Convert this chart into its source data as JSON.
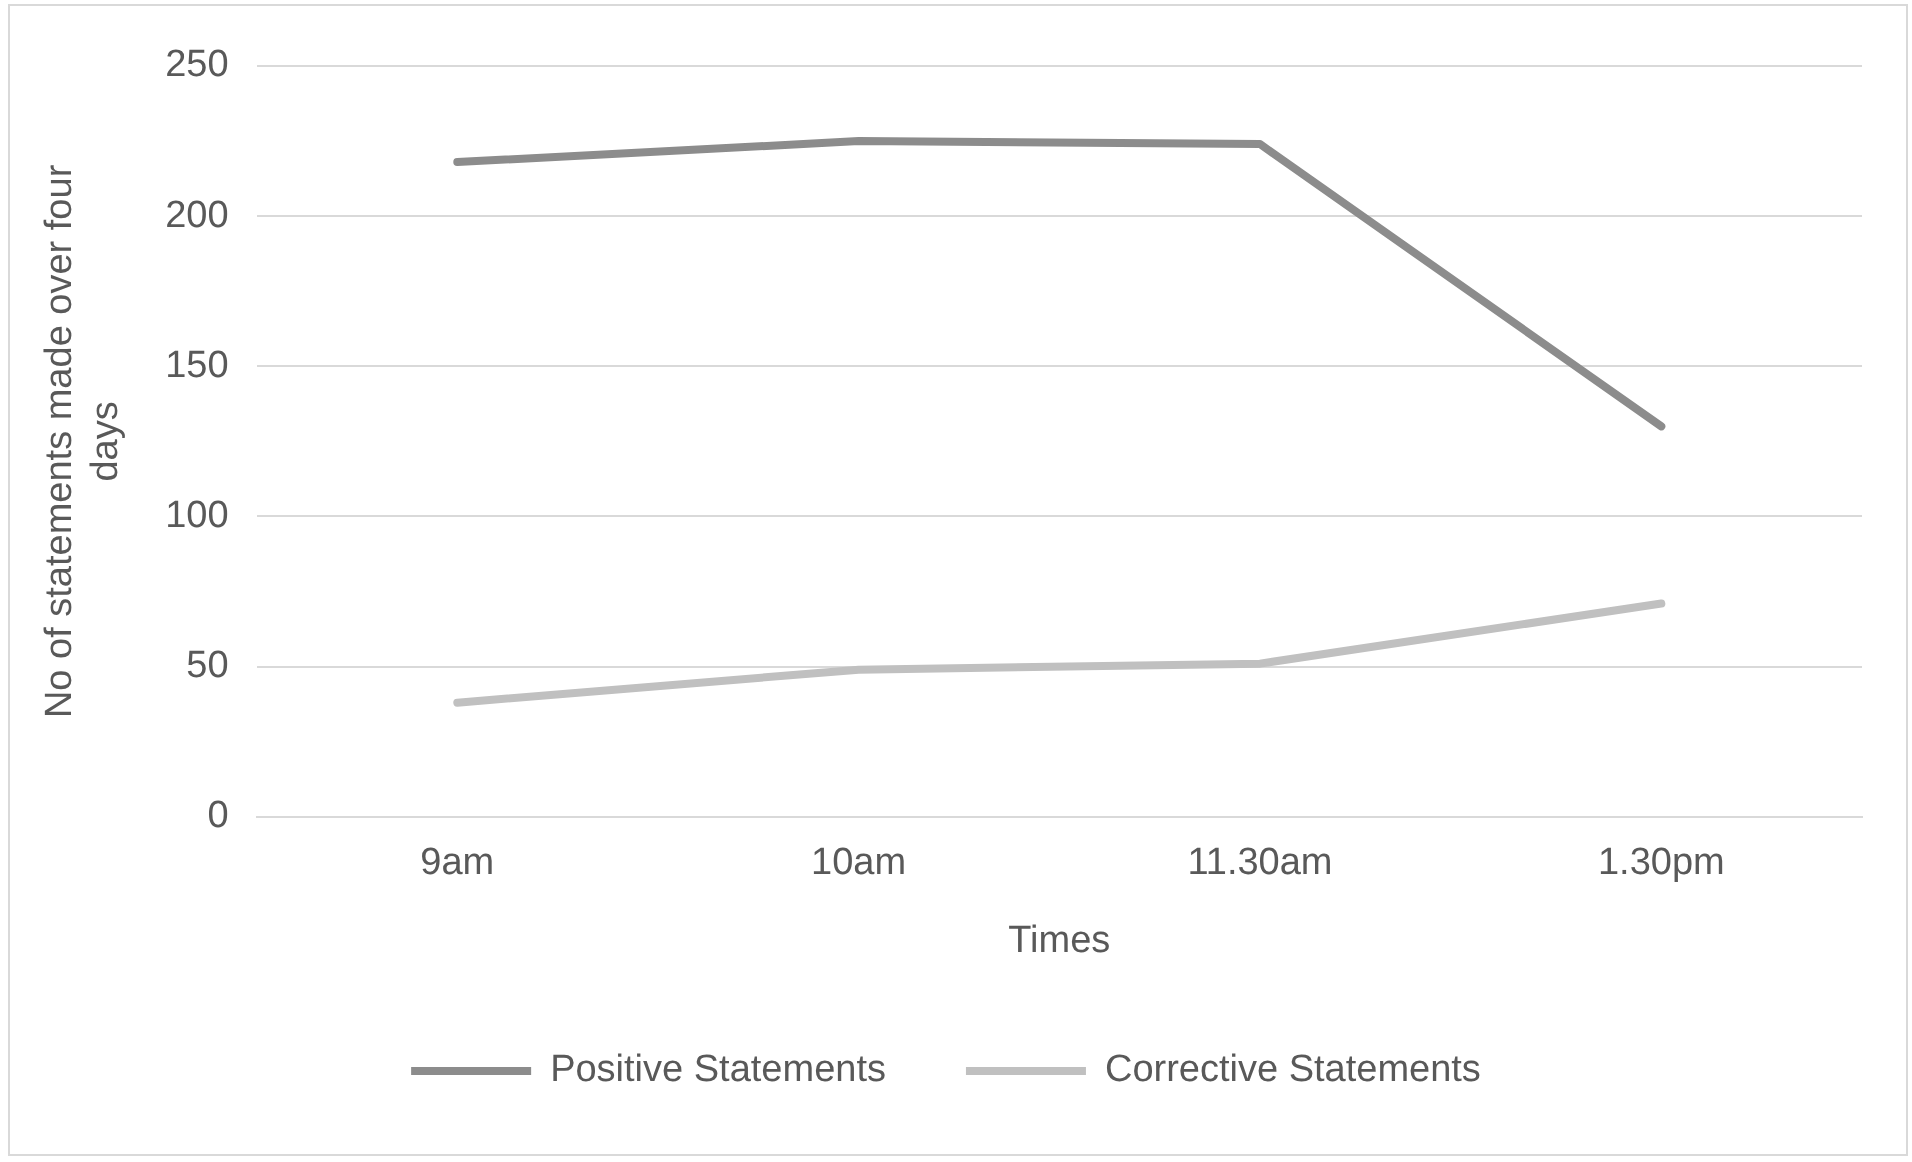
{
  "chart_data": {
    "type": "line",
    "xlabel": "Times",
    "ylabel": "No of statements made over four days",
    "categories": [
      "9am",
      "10am",
      "11.30am",
      "1.30pm"
    ],
    "series": [
      {
        "name": "Positive Statements",
        "color": "#8c8c8c",
        "values": [
          218,
          225,
          224,
          130
        ]
      },
      {
        "name": "Corrective Statements",
        "color": "#c0c0c0",
        "values": [
          38,
          49,
          51,
          71
        ]
      }
    ],
    "ylim": [
      0,
      250
    ],
    "yticks": [
      0,
      50,
      100,
      150,
      200,
      250
    ],
    "grid": "y",
    "legend": "bottom",
    "marker": "none",
    "line_style": "solid"
  }
}
